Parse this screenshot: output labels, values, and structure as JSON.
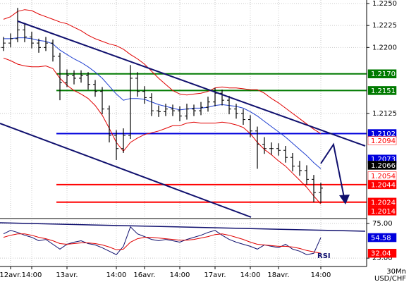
{
  "chart_data": [
    {
      "type": "ohlc",
      "symbol": "USD/CHF",
      "timeframe": "30Mn",
      "categories": [
        null,
        "12avr.",
        null,
        null,
        "14:00",
        null,
        null,
        null,
        null,
        "13avr.",
        null,
        null,
        null,
        null,
        null,
        null,
        "14:00",
        null,
        null,
        null,
        "16avr.",
        null,
        null,
        null,
        null,
        "14:00",
        null,
        null,
        null,
        null,
        "17avr.",
        null,
        null,
        null,
        null,
        "14:00",
        null,
        null,
        null,
        "18avr.",
        null,
        null,
        null,
        null,
        null,
        "14:00"
      ],
      "xlim": [
        -0.5,
        51.5
      ],
      "ylim": [
        1.2007,
        1.2254
      ],
      "yticks": [
        {
          "value": 1.225,
          "label": "1.2250"
        },
        {
          "value": 1.2225,
          "label": "1.2225"
        },
        {
          "value": 1.22,
          "label": "1.2200"
        },
        {
          "value": 1.2125,
          "label": "1.2125"
        }
      ],
      "grid": true,
      "color": "#000000",
      "ohlc": [
        [
          1.22,
          1.2212,
          1.2196,
          1.2205
        ],
        [
          1.2205,
          1.2216,
          1.22,
          1.221
        ],
        [
          1.221,
          1.2245,
          1.2206,
          1.222
        ],
        [
          1.222,
          1.2228,
          1.2206,
          1.2212
        ],
        [
          1.2212,
          1.2218,
          1.2199,
          1.2205
        ],
        [
          1.2205,
          1.221,
          1.2194,
          1.22
        ],
        [
          1.22,
          1.2212,
          1.2196,
          1.2205
        ],
        [
          1.2205,
          1.2209,
          1.2184,
          1.219
        ],
        [
          1.219,
          1.2194,
          1.214,
          1.216
        ],
        [
          1.216,
          1.2175,
          1.2155,
          1.2168
        ],
        [
          1.2168,
          1.2174,
          1.2158,
          1.2165
        ],
        [
          1.2165,
          1.2174,
          1.216,
          1.2168
        ],
        [
          1.2168,
          1.2172,
          1.2152,
          1.2158
        ],
        [
          1.2158,
          1.2163,
          1.2144,
          1.215
        ],
        [
          1.215,
          1.2155,
          1.2124,
          1.213
        ],
        [
          1.213,
          1.2134,
          1.2092,
          1.21
        ],
        [
          1.21,
          1.2106,
          1.2072,
          1.2085
        ],
        [
          1.2085,
          1.2108,
          1.208,
          1.21
        ],
        [
          1.21,
          1.218,
          1.2096,
          1.2165
        ],
        [
          1.2165,
          1.2172,
          1.2144,
          1.215
        ],
        [
          1.215,
          1.2156,
          1.2136,
          1.2143
        ],
        [
          1.2143,
          1.2148,
          1.2122,
          1.2128
        ],
        [
          1.2128,
          1.2134,
          1.2121,
          1.2127
        ],
        [
          1.2127,
          1.2136,
          1.2122,
          1.213
        ],
        [
          1.213,
          1.2135,
          1.2122,
          1.2128
        ],
        [
          1.2128,
          1.2133,
          1.2116,
          1.2122
        ],
        [
          1.2122,
          1.2136,
          1.2118,
          1.213
        ],
        [
          1.213,
          1.2135,
          1.2122,
          1.2128
        ],
        [
          1.2128,
          1.2138,
          1.2123,
          1.2132
        ],
        [
          1.2132,
          1.2144,
          1.2127,
          1.2138
        ],
        [
          1.2138,
          1.2154,
          1.2133,
          1.2148
        ],
        [
          1.2148,
          1.2152,
          1.2134,
          1.214
        ],
        [
          1.214,
          1.2145,
          1.2124,
          1.213
        ],
        [
          1.213,
          1.2136,
          1.2119,
          1.2125
        ],
        [
          1.2125,
          1.213,
          1.2112,
          1.2118
        ],
        [
          1.2118,
          1.2123,
          1.2098,
          1.2105
        ],
        [
          1.2105,
          1.211,
          1.2062,
          1.209
        ],
        [
          1.209,
          1.2098,
          1.2079,
          1.2085
        ],
        [
          1.2085,
          1.2092,
          1.2078,
          1.2085
        ],
        [
          1.2085,
          1.2091,
          1.2077,
          1.2083
        ],
        [
          1.2083,
          1.2088,
          1.2069,
          1.2075
        ],
        [
          1.2075,
          1.208,
          1.2059,
          1.2065
        ],
        [
          1.2065,
          1.2071,
          1.2054,
          1.206
        ],
        [
          1.206,
          1.2066,
          1.2044,
          1.205
        ],
        [
          1.205,
          1.2055,
          1.2024,
          1.2035
        ],
        [
          1.2035,
          1.2046,
          1.2023,
          1.204
        ]
      ],
      "series": [
        {
          "color": "#e00000",
          "values": [
            1.2232,
            1.2235,
            1.2241,
            1.2243,
            1.2242,
            1.2238,
            1.2235,
            1.2232,
            1.2229,
            1.2227,
            1.2223,
            1.2219,
            1.2214,
            1.221,
            1.2207,
            1.2204,
            1.2202,
            1.2198,
            1.2192,
            1.2187,
            1.2181,
            1.2173,
            1.2165,
            1.2158,
            1.2151,
            1.2147,
            1.2146,
            1.2147,
            1.2148,
            1.215,
            1.2154,
            1.2155,
            1.2154,
            1.2154,
            1.2153,
            1.2152,
            1.2152,
            1.2148,
            1.2142,
            1.2137,
            1.2131,
            1.2125,
            1.2119,
            1.2113,
            1.2107,
            1.2102
          ]
        },
        {
          "color": "#e00000",
          "values": [
            1.2188,
            1.2185,
            1.2181,
            1.2179,
            1.2178,
            1.2178,
            1.2179,
            1.2176,
            1.2165,
            1.2157,
            1.2151,
            1.2147,
            1.2142,
            1.2134,
            1.2123,
            1.2108,
            1.2092,
            1.2082,
            1.2092,
            1.2097,
            1.2101,
            1.2103,
            1.2105,
            1.2108,
            1.2111,
            1.2111,
            1.2114,
            1.2115,
            1.2114,
            1.2114,
            1.2114,
            1.2115,
            1.2114,
            1.2112,
            1.2109,
            1.2102,
            1.2092,
            1.2084,
            1.2078,
            1.2071,
            1.2065,
            1.2057,
            1.2049,
            1.2041,
            1.2031,
            1.2022
          ]
        },
        {
          "color": "#1f3fd0",
          "values": [
            1.221,
            1.221,
            1.2211,
            1.2211,
            1.221,
            1.2208,
            1.2207,
            1.2204,
            1.2197,
            1.2192,
            1.2187,
            1.2183,
            1.2178,
            1.2172,
            1.2165,
            1.2156,
            1.2147,
            1.214,
            1.2142,
            1.2142,
            1.2141,
            1.2138,
            1.2135,
            1.2133,
            1.2131,
            1.2129,
            1.213,
            1.2131,
            1.2131,
            1.2132,
            1.2134,
            1.2135,
            1.2134,
            1.2133,
            1.2131,
            1.2127,
            1.2122,
            1.2116,
            1.211,
            1.2104,
            1.2098,
            1.2091,
            1.2084,
            1.2077,
            1.2069,
            1.2062
          ]
        }
      ],
      "levels": [
        {
          "value": 1.217,
          "label": "1.2170",
          "line": true,
          "color": "#007a00",
          "fill": "#007a00",
          "text_color": "#ffffff"
        },
        {
          "value": 1.2151,
          "line": true,
          "color": "#007a00",
          "fill": "#007a00",
          "text_color": "#ffffff"
        },
        {
          "value": 1.2102,
          "line": true,
          "color": "#0000dd",
          "fill": "#0000dd",
          "text_color": "#ffffff"
        },
        {
          "value": 1.2094,
          "line": false,
          "color": "#ff0000",
          "fill": "#ffffff",
          "text_color": "#ff0000"
        },
        {
          "value": 1.2073,
          "line": false,
          "color": "#0000dd",
          "fill": "#0000dd",
          "text_color": "#ffffff"
        },
        {
          "value": 1.2066,
          "line": false,
          "color": "#000000",
          "fill": "#000000",
          "text_color": "#ffffff"
        },
        {
          "value": 1.2054,
          "line": false,
          "color": "#ff0000",
          "fill": "#ffffff",
          "text_color": "#ff0000"
        },
        {
          "value": 1.2044,
          "line": true,
          "color": "#ff0000",
          "fill": "#ff0000",
          "text_color": "#ffffff"
        },
        {
          "value": 1.2024,
          "line": true,
          "color": "#ff0000",
          "fill": "#ff0000",
          "text_color": "#ffffff"
        },
        {
          "value": 1.2014,
          "line": false,
          "color": "#ff0000",
          "fill": "#ff0000",
          "text_color": "#ffffff"
        }
      ]
    },
    {
      "type": "line",
      "title": "RSI",
      "xlim": [
        -0.5,
        51.5
      ],
      "ylim": [
        15,
        80
      ],
      "yticks": [
        {
          "value": 75,
          "label": "75.00"
        },
        {
          "value": 25,
          "label": "25.00"
        }
      ],
      "grid": true,
      "series": [
        {
          "color": "#10106e",
          "values": [
            60,
            65,
            62,
            58,
            55,
            50,
            52,
            45,
            38,
            45,
            48,
            50,
            46,
            44,
            40,
            35,
            30,
            42,
            70,
            60,
            56,
            52,
            50,
            52,
            50,
            48,
            52,
            55,
            58,
            62,
            65,
            58,
            52,
            48,
            45,
            42,
            38,
            44,
            42,
            40,
            45,
            38,
            35,
            30,
            32,
            54.58
          ]
        },
        {
          "color": "#e00000",
          "values": [
            55,
            58,
            60,
            60,
            58,
            55,
            53,
            50,
            46,
            45,
            46,
            47,
            47,
            46,
            44,
            41,
            37,
            38,
            48,
            53,
            55,
            55,
            54,
            53,
            52,
            51,
            51,
            52,
            54,
            56,
            59,
            60,
            58,
            55,
            52,
            48,
            45,
            44,
            43,
            42,
            42,
            41,
            39,
            36,
            34,
            32.04
          ]
        }
      ],
      "levels": [
        {
          "value": 54.58,
          "line": false,
          "color": "#0000dd",
          "fill": "#0000dd",
          "text_color": "#ffffff"
        },
        {
          "value": 32.04,
          "line": false,
          "color": "#ff0000",
          "fill": "#ff0000",
          "text_color": "#ffffff"
        }
      ]
    }
  ]
}
